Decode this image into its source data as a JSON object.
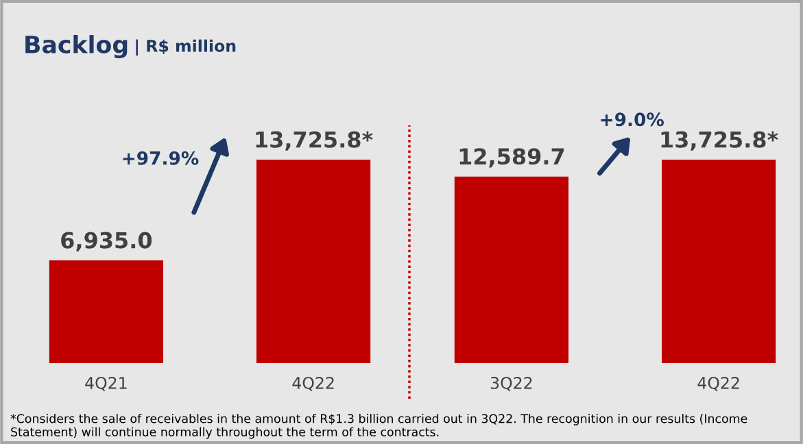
{
  "chart_data": [
    {
      "type": "bar",
      "title": "Backlog",
      "subtitle": "| R$ million",
      "categories": [
        "4Q21",
        "4Q22"
      ],
      "values": [
        6935.0,
        13725.8
      ],
      "value_labels": [
        "6,935.0",
        "13,725.8*"
      ],
      "color": "#c00000",
      "annotations": [
        "+97.9%",
        "*Considers the sale of receivables in the amount of R$1.3 billion carried out in 3Q22. The recognition in our results (Income Statement) will continue normally throughout the term of the contracts."
      ]
    },
    {
      "type": "bar",
      "categories": [
        "3Q22",
        "4Q22"
      ],
      "values": [
        12589.7,
        13725.8
      ],
      "value_labels": [
        "12,589.7",
        "13,725.8*"
      ],
      "color": "#c00000",
      "annotations": [
        "+9.0%"
      ]
    }
  ]
}
